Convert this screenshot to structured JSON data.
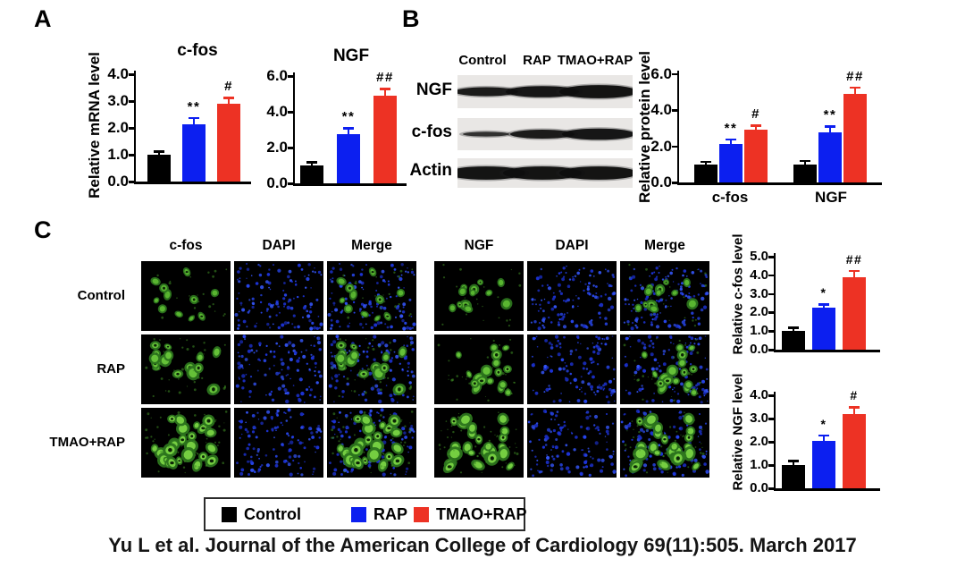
{
  "figure": {
    "panel_a": {
      "label": "A",
      "ylabel": "Relative mRNA level"
    },
    "panel_b": {
      "label": "B",
      "blot": {
        "lane_headers": [
          "Control",
          "RAP",
          "TMAO+RAP"
        ],
        "rows": [
          {
            "label": "NGF",
            "bands": [
              "medium",
              "thick",
              "heavy"
            ]
          },
          {
            "label": "c-fos",
            "bands": [
              "faint",
              "medium",
              "thick"
            ]
          },
          {
            "label": "Actin",
            "bands": [
              "heavy",
              "heavy",
              "heavy"
            ]
          }
        ]
      }
    },
    "panel_c": {
      "label": "C",
      "column_headers": [
        "c-fos",
        "DAPI",
        "Merge",
        "NGF",
        "DAPI",
        "Merge"
      ],
      "column_channels": [
        "green",
        "dapi",
        "merge",
        "green",
        "dapi",
        "merge"
      ],
      "row_labels": [
        "Control",
        "RAP",
        "TMAO+RAP"
      ]
    }
  },
  "legend": {
    "items": [
      {
        "label": "Control",
        "color": "#000000"
      },
      {
        "label": "RAP",
        "color": "#0c1ff0"
      },
      {
        "label": "TMAO+RAP",
        "color": "#ed3224"
      }
    ]
  },
  "citation": "Yu L et al. Journal of the American College of Cardiology 69(11):505. March 2017",
  "colors": {
    "control_bar": "#000000",
    "rap_bar": "#0c1ff0",
    "tmao_rap_bar": "#ed3224",
    "dapi_blue": "#2847ef",
    "if_green": "#68c53a",
    "blot_background": "#e9e7e5"
  },
  "chart_data": [
    {
      "id": "a_cfos",
      "panel": "A",
      "type": "bar",
      "title": "c-fos",
      "ylabel": "Relative mRNA level",
      "categories": [
        "Control",
        "RAP",
        "TMAO+RAP"
      ],
      "values": [
        1.0,
        2.15,
        2.9
      ],
      "errors": [
        0.1,
        0.2,
        0.2
      ],
      "significance": [
        "",
        "**",
        "#"
      ],
      "bar_colors": [
        "#000000",
        "#0c1ff0",
        "#ed3224"
      ],
      "ylim": [
        0,
        4.0
      ],
      "ytick_labels": [
        "0.0",
        "1.0",
        "2.0",
        "3.0",
        "4.0"
      ]
    },
    {
      "id": "a_ngf",
      "panel": "A",
      "type": "bar",
      "title": "NGF",
      "ylabel": "Relative mRNA level",
      "categories": [
        "Control",
        "RAP",
        "TMAO+RAP"
      ],
      "values": [
        1.0,
        2.75,
        4.9
      ],
      "errors": [
        0.15,
        0.3,
        0.35
      ],
      "significance": [
        "",
        "**",
        "##"
      ],
      "bar_colors": [
        "#000000",
        "#0c1ff0",
        "#ed3224"
      ],
      "ylim": [
        0,
        6.0
      ],
      "ytick_labels": [
        "0.0",
        "2.0",
        "4.0",
        "6.0"
      ]
    },
    {
      "id": "b_protein",
      "panel": "B",
      "type": "bar-grouped",
      "title": "",
      "ylabel": "Relative protein level",
      "categories": [
        "c-fos",
        "NGF"
      ],
      "series": [
        {
          "name": "Control",
          "values": [
            1.0,
            1.0
          ],
          "errors": [
            0.1,
            0.15
          ],
          "significance": [
            "",
            ""
          ]
        },
        {
          "name": "RAP",
          "values": [
            2.15,
            2.75
          ],
          "errors": [
            0.2,
            0.3
          ],
          "significance": [
            "**",
            "**"
          ]
        },
        {
          "name": "TMAO+RAP",
          "values": [
            2.9,
            4.9
          ],
          "errors": [
            0.2,
            0.3
          ],
          "significance": [
            "#",
            "##"
          ]
        }
      ],
      "ylim": [
        0,
        6.0
      ],
      "ytick_labels": [
        "0.0",
        "2.0",
        "4.0",
        "6.0"
      ]
    },
    {
      "id": "c_cfos",
      "panel": "C",
      "type": "bar",
      "title": "",
      "ylabel": "Relative c-fos level",
      "categories": [
        "Control",
        "RAP",
        "TMAO+RAP"
      ],
      "values": [
        1.0,
        2.25,
        3.9
      ],
      "errors": [
        0.15,
        0.15,
        0.3
      ],
      "significance": [
        "",
        "*",
        "##"
      ],
      "bar_colors": [
        "#000000",
        "#0c1ff0",
        "#ed3224"
      ],
      "ylim": [
        0,
        5.0
      ],
      "ytick_labels": [
        "0.0",
        "1.0",
        "2.0",
        "3.0",
        "4.0",
        "5.0"
      ]
    },
    {
      "id": "c_ngf",
      "panel": "C",
      "type": "bar",
      "title": "",
      "ylabel": "Relative NGF level",
      "categories": [
        "Control",
        "RAP",
        "TMAO+RAP"
      ],
      "values": [
        1.0,
        2.05,
        3.2
      ],
      "errors": [
        0.15,
        0.2,
        0.25
      ],
      "significance": [
        "",
        "*",
        "#"
      ],
      "bar_colors": [
        "#000000",
        "#0c1ff0",
        "#ed3224"
      ],
      "ylim": [
        0,
        4.0
      ],
      "ytick_labels": [
        "0.0",
        "1.0",
        "2.0",
        "3.0",
        "4.0"
      ]
    }
  ]
}
